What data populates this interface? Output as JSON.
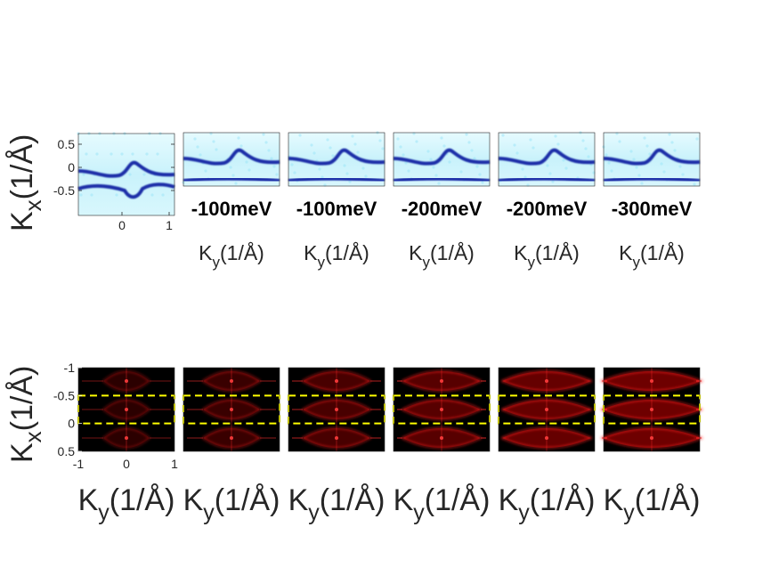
{
  "chart_data": [
    {
      "type": "heatmap",
      "panel_row": "top",
      "colormap": "white-cyan-blue",
      "ylabel": "K",
      "ylabel_sub": "x",
      "ylabel_unit": "(1/Å)",
      "yticks": [
        "0.5",
        "0",
        "-0.5"
      ],
      "xticks": [
        "0",
        "1"
      ],
      "panels": [
        {
          "energy_label": "",
          "xlabel": ""
        },
        {
          "energy_label": "-100meV",
          "xlabel": "K",
          "xlabel_sub": "y",
          "xlabel_unit": "(1/Å)"
        },
        {
          "energy_label": "-100meV",
          "xlabel": "K",
          "xlabel_sub": "y",
          "xlabel_unit": "(1/Å)"
        },
        {
          "energy_label": "-200meV",
          "xlabel": "K",
          "xlabel_sub": "y",
          "xlabel_unit": "(1/Å)"
        },
        {
          "energy_label": "-200meV",
          "xlabel": "K",
          "xlabel_sub": "y",
          "xlabel_unit": "(1/Å)"
        },
        {
          "energy_label": "-300meV",
          "xlabel": "K",
          "xlabel_sub": "y",
          "xlabel_unit": "(1/Å)"
        }
      ]
    },
    {
      "type": "heatmap",
      "panel_row": "bottom",
      "colormap": "black-red",
      "ylabel": "K",
      "ylabel_sub": "x",
      "ylabel_unit": "(1/Å)",
      "yticks": [
        "-1",
        "-0.5",
        "0",
        "0.5"
      ],
      "xticks": [
        "-1",
        "0",
        "1"
      ],
      "ylim": [
        -1,
        0.5
      ],
      "xlim": [
        -1,
        1
      ],
      "highlight_box": {
        "color": "#ffff00",
        "style": "dashed",
        "ky_range": [
          -1,
          1
        ],
        "kx_range": [
          -0.5,
          0
        ]
      },
      "panels": [
        {
          "xlabel": "K",
          "xlabel_sub": "y",
          "xlabel_unit": "(1/Å)"
        },
        {
          "xlabel": "K",
          "xlabel_sub": "y",
          "xlabel_unit": "(1/Å)"
        },
        {
          "xlabel": "K",
          "xlabel_sub": "y",
          "xlabel_unit": "(1/Å)"
        },
        {
          "xlabel": "K",
          "xlabel_sub": "y",
          "xlabel_unit": "(1/Å)"
        },
        {
          "xlabel": "K",
          "xlabel_sub": "y",
          "xlabel_unit": "(1/Å)"
        },
        {
          "xlabel": "K",
          "xlabel_sub": "y",
          "xlabel_unit": "(1/Å)"
        }
      ]
    }
  ]
}
